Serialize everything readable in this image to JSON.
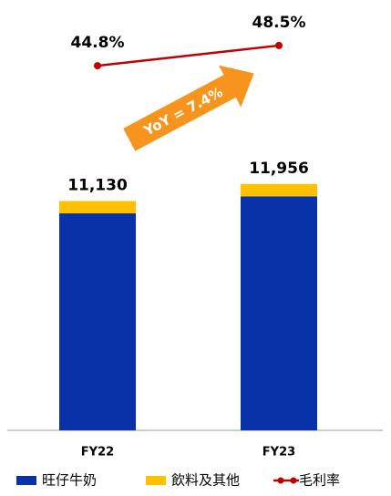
{
  "chart_data": {
    "type": "bar",
    "categories": [
      "FY22",
      "FY23"
    ],
    "series": [
      {
        "name": "旺仔牛奶",
        "color": "#0a32a8",
        "values": [
          10530,
          11356
        ]
      },
      {
        "name": "飲料及其他",
        "color": "#ffc000",
        "values": [
          600,
          600
        ]
      },
      {
        "name": "毛利率",
        "color": "#c00000",
        "axis": "y2",
        "type": "line",
        "values": [
          44.8,
          48.5
        ],
        "value_labels": [
          "44.8%",
          "48.5%"
        ]
      }
    ],
    "totals": [
      11130,
      11956
    ],
    "total_labels": [
      "11,130",
      "11,956"
    ],
    "annotation": "YoY = 7.4%",
    "ylim": [
      0,
      20000
    ],
    "y2lim": [
      -22,
      53.5
    ]
  }
}
